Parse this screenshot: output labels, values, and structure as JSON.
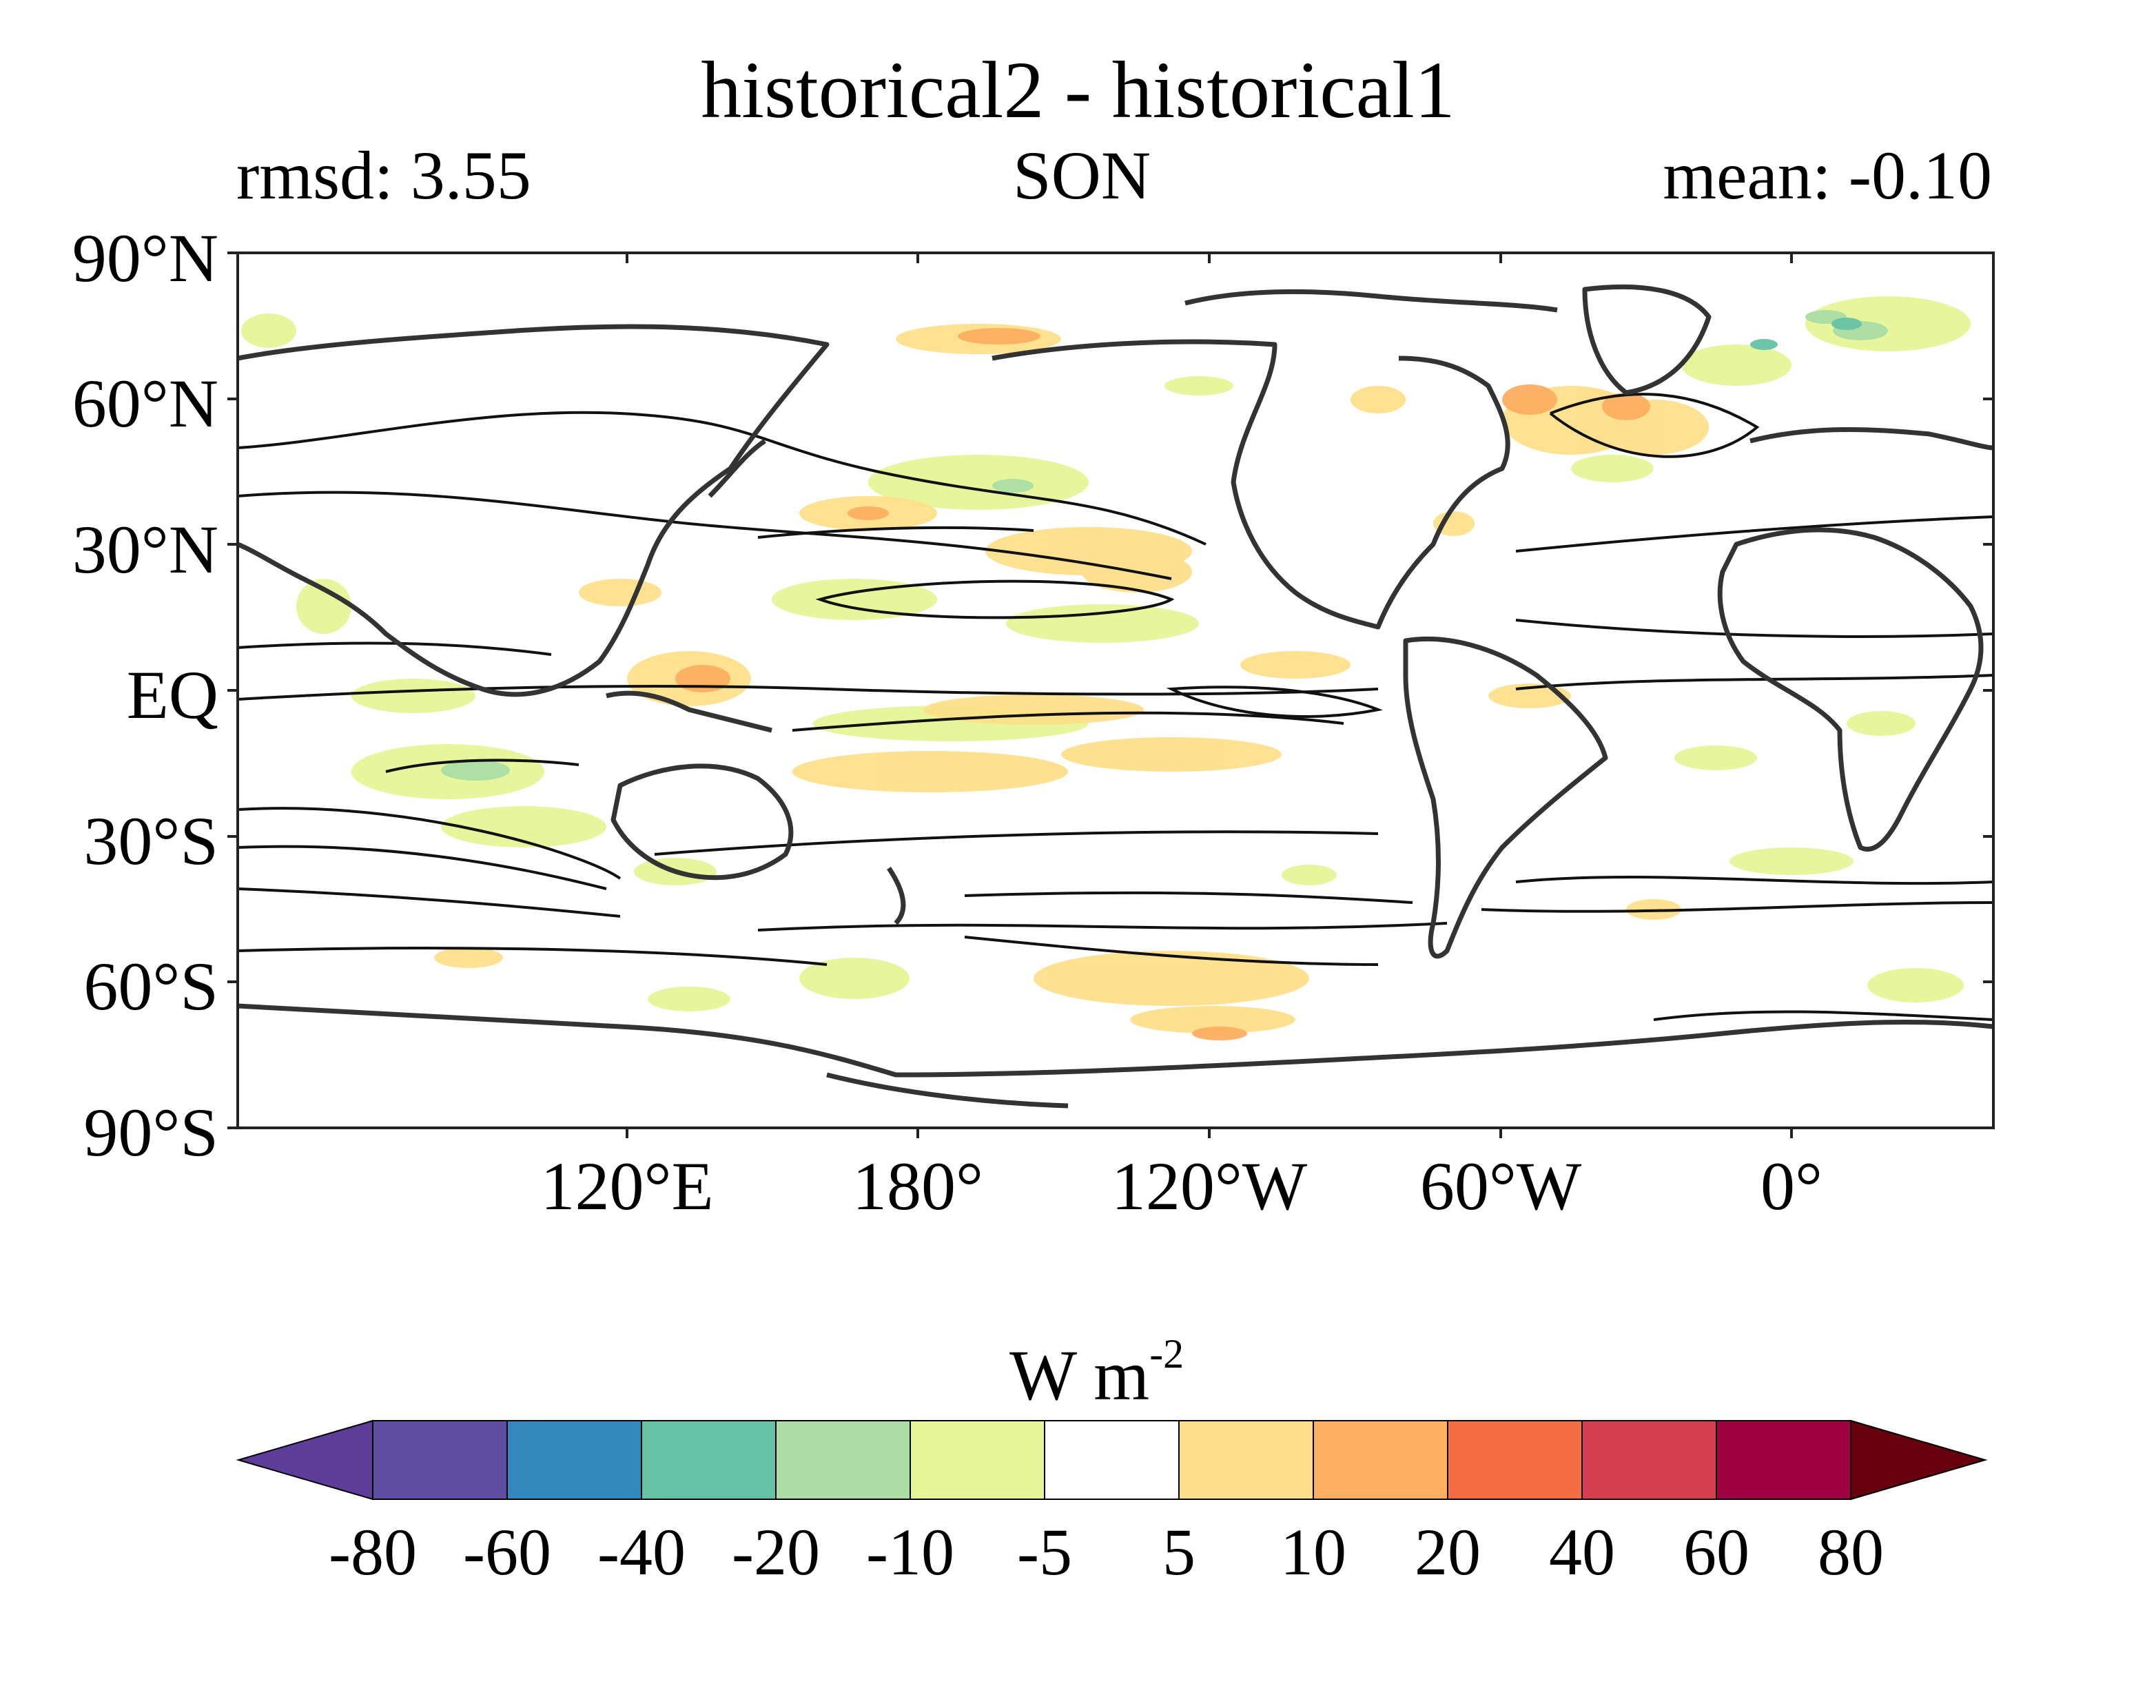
{
  "title": "historical2 - historical1",
  "left_stat": "rmsd: 3.55",
  "season": "SON",
  "right_stat": "mean: -0.10",
  "lat_labels": [
    "90°N",
    "60°N",
    "30°N",
    "EQ",
    "30°S",
    "60°S",
    "90°S"
  ],
  "lon_labels": [
    "120°E",
    "180°",
    "120°W",
    "60°W",
    "0°"
  ],
  "colorbar": {
    "units_base": "W m",
    "units_exp": "-2",
    "levels": [
      "-80",
      "-60",
      "-40",
      "-20",
      "-10",
      "-5",
      "5",
      "10",
      "20",
      "40",
      "60",
      "80"
    ],
    "colors": [
      "#5e3c99",
      "#5e4fa2",
      "#3288bd",
      "#66c2a5",
      "#abdda4",
      "#e6f598",
      "#ffffff",
      "#fee08b",
      "#fdae61",
      "#f46d43",
      "#d53e4f",
      "#9e0142",
      "#67000d"
    ]
  }
}
